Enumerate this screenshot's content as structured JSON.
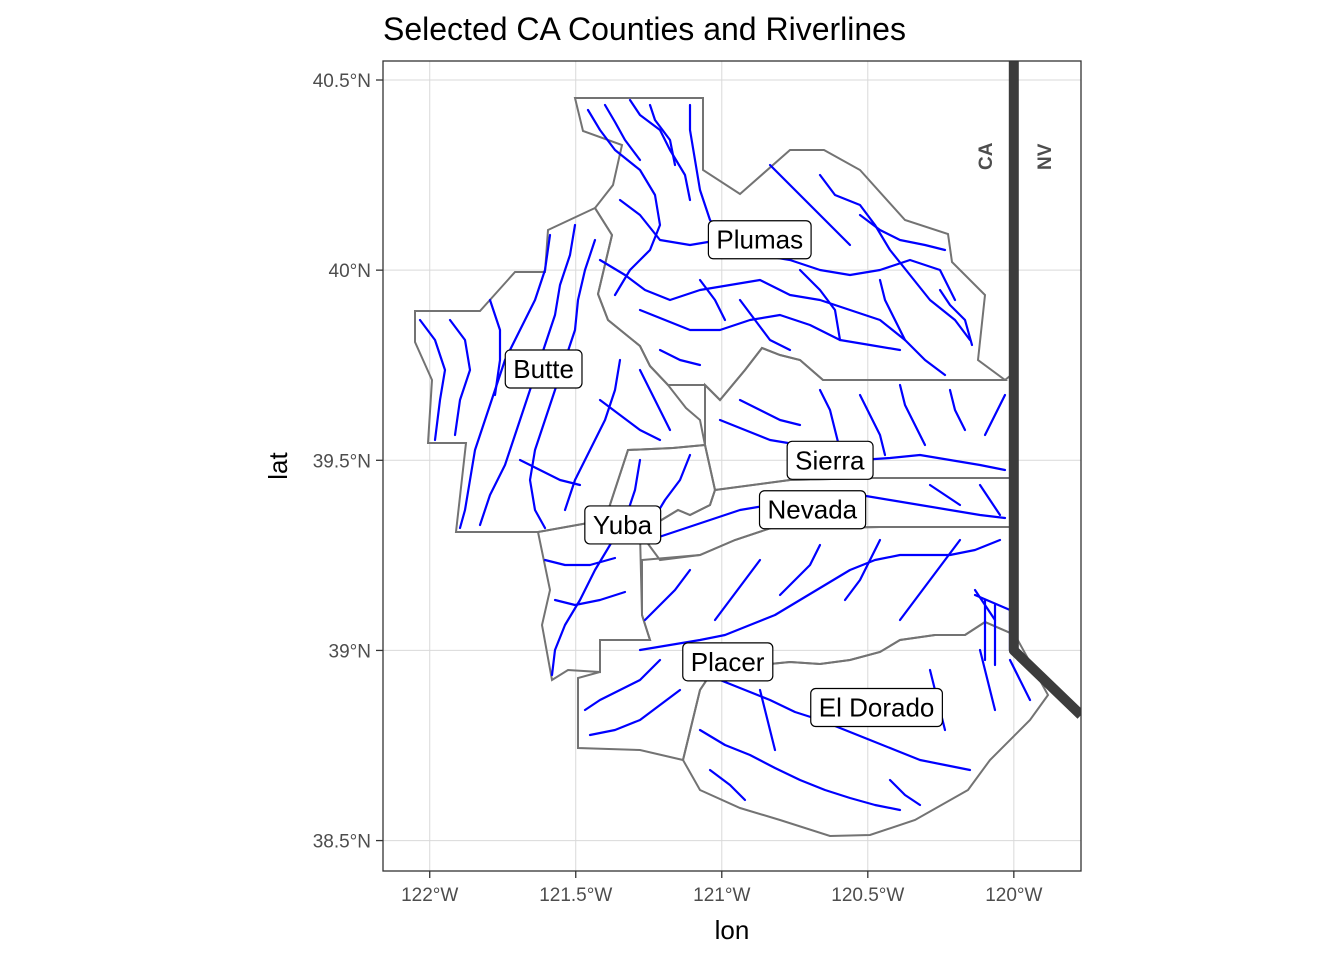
{
  "title": "Selected CA Counties and Riverlines",
  "x_axis": {
    "label": "lon",
    "ticks": [
      "122°W",
      "121.5°W",
      "121°W",
      "120.5°W",
      "120°W"
    ]
  },
  "y_axis": {
    "label": "lat",
    "ticks": [
      "38.5°N",
      "39°N",
      "39.5°N",
      "40°N",
      "40.5°N"
    ]
  },
  "state_labels": [
    "CA",
    "NV"
  ],
  "counties": [
    "Plumas",
    "Butte",
    "Sierra",
    "Yuba",
    "Nevada",
    "Placer",
    "El Dorado"
  ],
  "colors": {
    "rivers": "#0000ff",
    "county_outline": "#737373",
    "state_border": "#3c3c3c",
    "grid": "#d9d9d9"
  },
  "map_data": {
    "lon_range": [
      -122.16,
      -119.77
    ],
    "lat_range": [
      38.42,
      40.55
    ],
    "lon_ticks": [
      -122,
      -121.5,
      -121,
      -120.5,
      -120
    ],
    "lat_ticks": [
      38.5,
      39,
      39.5,
      40,
      40.5
    ],
    "state_border": [
      [
        -120.0,
        40.55
      ],
      [
        -120.0,
        39.0
      ],
      [
        -119.77,
        38.83
      ]
    ],
    "county_label_positions": [
      {
        "name": "Plumas",
        "lon": -120.87,
        "lat": 40.08
      },
      {
        "name": "Butte",
        "lon": -121.61,
        "lat": 39.74
      },
      {
        "name": "Sierra",
        "lon": -120.63,
        "lat": 39.5
      },
      {
        "name": "Yuba",
        "lon": -121.34,
        "lat": 39.33
      },
      {
        "name": "Nevada",
        "lon": -120.69,
        "lat": 39.37
      },
      {
        "name": "Placer",
        "lon": -120.98,
        "lat": 38.97
      },
      {
        "name": "El Dorado",
        "lon": -120.47,
        "lat": 38.85
      }
    ]
  }
}
